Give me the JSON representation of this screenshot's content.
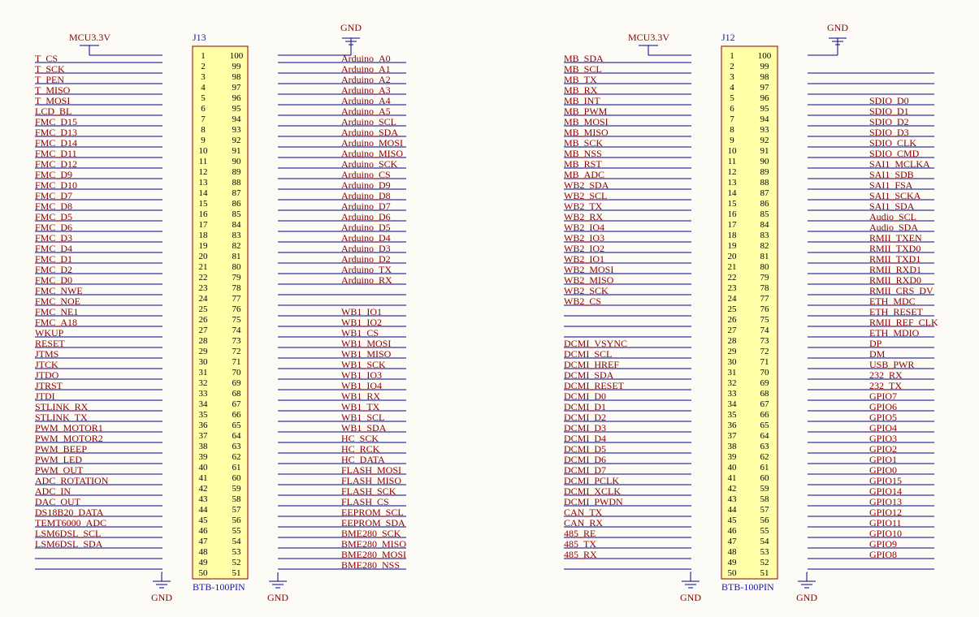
{
  "colors": {
    "wire": "#00008b",
    "body_fill": "#ffffa8",
    "body_stroke": "#8b0000",
    "label": "#8b0000",
    "designator": "#1a1aa0",
    "background": "#fdfbf5"
  },
  "connectors": [
    {
      "designator": "J13",
      "part": "BTB-100PIN",
      "top_left_power": "MCU3.3V",
      "top_right_power": "GND",
      "bottom_left_power": "GND",
      "bottom_right_power": "GND",
      "left_labels": [
        "T_CS",
        "T_SCK",
        "T_PEN",
        "T_MISO",
        "T_MOSI",
        "LCD_BL",
        "FMC_D15",
        "FMC_D13",
        "FMC_D14",
        "FMC_D11",
        "FMC_D12",
        "FMC_D9",
        "FMC_D10",
        "FMC_D7",
        "FMC_D8",
        "FMC_D5",
        "FMC_D6",
        "FMC_D3",
        "FMC_D4",
        "FMC_D1",
        "FMC_D2",
        "FMC_D0",
        "FMC_NWE",
        "FMC_NOE",
        "FMC_NE1",
        "FMC_A18",
        "WKUP",
        "RESET",
        "JTMS",
        "JTCK",
        "JTDO",
        "JTRST",
        "JTDI",
        "STLINK_RX",
        "STLINK_TX",
        "PWM_MOTOR1",
        "PWM_MOTOR2",
        "PWM_BEEP",
        "PWM_LED",
        "PWM_OUT",
        "ADC_ROTATION",
        "ADC_IN",
        "DAC_OUT",
        "DS18B20_DATA",
        "TEMT6000_ADC",
        "LSM6DSL_SCL",
        "LSM6DSL_SDA",
        "",
        "",
        ""
      ],
      "right_labels": [
        "Arduino_A0",
        "Arduino_A1",
        "Arduino_A2",
        "Arduino_A3",
        "Arduino_A4",
        "Arduino_A5",
        "Arduino_SCL",
        "Arduino_SDA",
        "Arduino_MOSI",
        "Arduino_MISO",
        "Arduino_SCK",
        "Arduino_CS",
        "Arduino_D9",
        "Arduino_D8",
        "Arduino_D7",
        "Arduino_D6",
        "Arduino_D5",
        "Arduino_D4",
        "Arduino_D3",
        "Arduino_D2",
        "Arduino_TX",
        "Arduino_RX",
        "",
        "",
        "WB1_IO1",
        "WB1_IO2",
        "WB1_CS",
        "WB1_MOSI",
        "WB1_MISO",
        "WB1_SCK",
        "WB1_IO3",
        "WB1_IO4",
        "WB1_RX",
        "WB1_TX",
        "WB1_SCL",
        "WB1_SDA",
        "HC_SCK",
        "HC_RCK",
        "HC_DATA",
        "FLASH_MOSI",
        "FLASH_MISO",
        "FLASH_SCK",
        "FLASH_CS",
        "EEPROM_SCL",
        "EEPROM_SDA",
        "BME280_SCK",
        "BME280_MISO",
        "BME280_MOSI",
        "BME280_NSS",
        ""
      ]
    },
    {
      "designator": "J12",
      "part": "BTB-100PIN",
      "top_left_power": "MCU3.3V",
      "top_right_power": "GND",
      "bottom_left_power": "GND",
      "bottom_right_power": "GND",
      "left_labels": [
        "MB_SDA",
        "MB_SCL",
        "MB_TX",
        "MB_RX",
        "MB_INT",
        "MB_PWM",
        "MB_MOSI",
        "MB_MISO",
        "MB_SCK",
        "MB_NSS",
        "MB_RST",
        "MB_ADC",
        "WB2_SDA",
        "WB2_SCL",
        "WB2_TX",
        "WB2_RX",
        "WB2_IO4",
        "WB2_IO3",
        "WB2_IO2",
        "WB2_IO1",
        "WB2_MOSI",
        "WB2_MISO",
        "WB2_SCK",
        "WB2_CS",
        "",
        "",
        "",
        "DCMI_VSYNC",
        "DCMI_SCL",
        "DCMI_HREF",
        "DCMI_SDA",
        "DCMI_RESET",
        "DCMI_D0",
        "DCMI_D1",
        "DCMI_D2",
        "DCMI_D3",
        "DCMI_D4",
        "DCMI_D5",
        "DCMI_D6",
        "DCMI_D7",
        "DCMI_PCLK",
        "DCMI_XCLK",
        "DCMI_PWDN",
        "CAN_TX",
        "CAN_RX",
        "485_RE",
        "485_TX",
        "485_RX",
        "",
        ""
      ],
      "right_labels": [
        "",
        "",
        "",
        "",
        "SDIO_D0",
        "SDIO_D1",
        "SDIO_D2",
        "SDIO_D3",
        "SDIO_CLK",
        "SDIO_CMD",
        "SAI1_MCLKA",
        "SAI1_SDB",
        "SAI1_FSA",
        "SAI1_SCKA",
        "SAI1_SDA",
        "Audio_SCL",
        "Audio_SDA",
        "RMII_TXEN",
        "RMII_TXD0",
        "RMII_TXD1",
        "RMII_RXD1",
        "RMII_RXD0",
        "RMII_CRS_DV",
        "ETH_MDC",
        "ETH_RESET",
        "RMII_REF_CLK",
        "ETH_MDIO",
        "DP",
        "DM",
        "USB_PWR",
        "232_RX",
        "232_TX",
        "GPIO7",
        "GPIO6",
        "GPIO5",
        "GPIO4",
        "GPIO3",
        "GPIO2",
        "GPIO1",
        "GPIO0",
        "GPIO15",
        "GPIO14",
        "GPIO13",
        "GPIO12",
        "GPIO11",
        "GPIO10",
        "GPIO9",
        "GPIO8",
        "",
        ""
      ]
    }
  ]
}
